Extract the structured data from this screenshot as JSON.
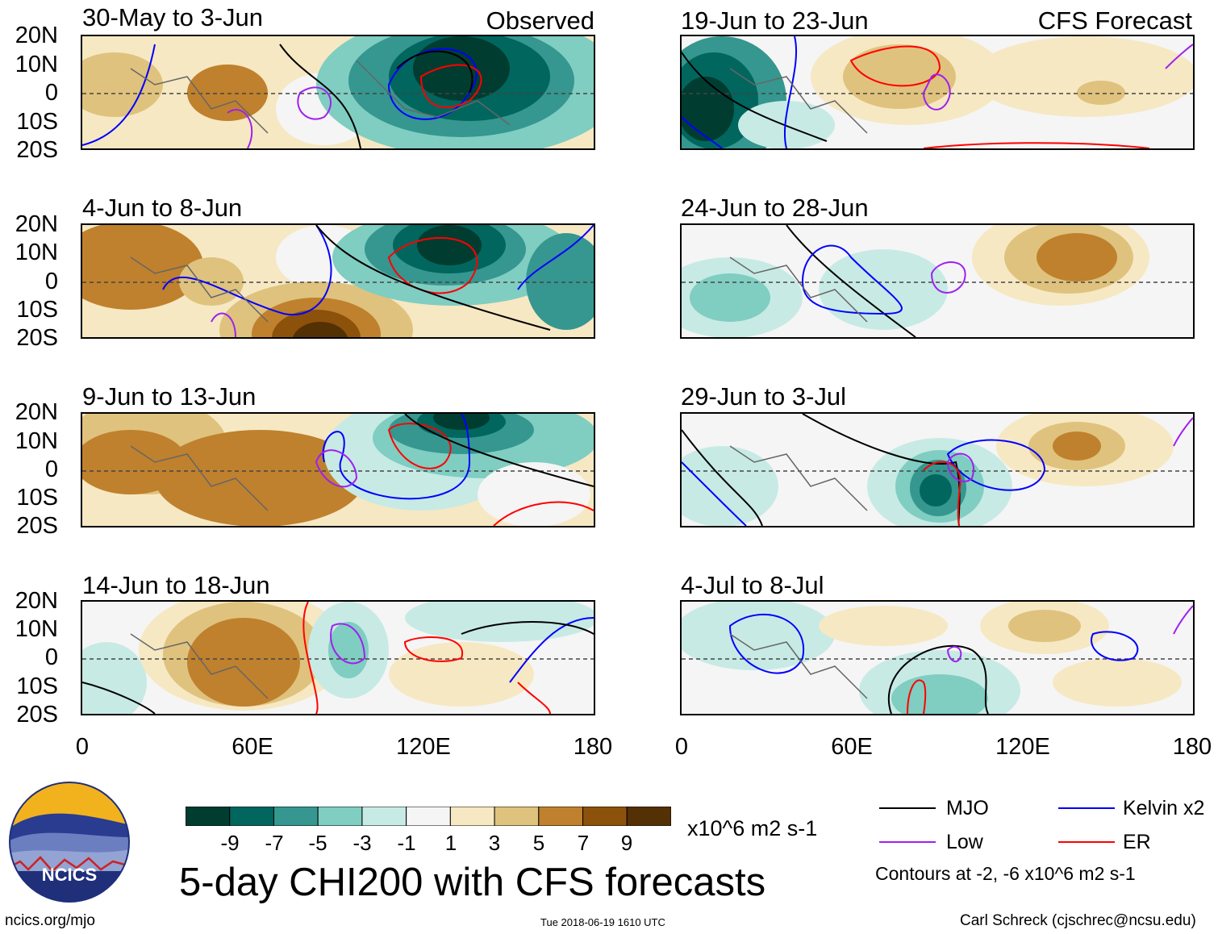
{
  "figure": {
    "main_title": "5-day CHI200 with CFS forecasts",
    "observed_label": "Observed",
    "forecast_label": "CFS Forecast",
    "units": "x10^6 m2 s-1",
    "contour_note": "Contours at -2, -6 x10^6 m2 s-1",
    "url": "ncics.org/mjo",
    "timestamp": "Tue 2018-06-19 1610 UTC",
    "author": "Carl Schreck (cjschrec@ncsu.edu)",
    "logo_text": "NCICS"
  },
  "y_ticks": [
    "20N",
    "10N",
    "0",
    "10S",
    "20S"
  ],
  "x_ticks": [
    "0",
    "60E",
    "120E",
    "180"
  ],
  "panels_left": [
    {
      "title": "30-May to 3-Jun"
    },
    {
      "title": "4-Jun to 8-Jun"
    },
    {
      "title": "9-Jun to 13-Jun"
    },
    {
      "title": "14-Jun to 18-Jun"
    }
  ],
  "panels_right": [
    {
      "title": "19-Jun to 23-Jun"
    },
    {
      "title": "24-Jun to 28-Jun"
    },
    {
      "title": "29-Jun to 3-Jul"
    },
    {
      "title": "4-Jul to 8-Jul"
    }
  ],
  "colorbar": {
    "labels": [
      "-9",
      "-7",
      "-5",
      "-3",
      "-1",
      "1",
      "3",
      "5",
      "7",
      "9"
    ],
    "colors": [
      "#003c30",
      "#01665e",
      "#35978f",
      "#80cdc1",
      "#c7eae5",
      "#f5f5f5",
      "#f6e8c3",
      "#dfc27d",
      "#bf812d",
      "#8c510a",
      "#543005"
    ]
  },
  "legend": [
    {
      "label": "MJO",
      "color": "#000000"
    },
    {
      "label": "Kelvin x2",
      "color": "#0000ff"
    },
    {
      "label": "Low",
      "color": "#a020f0"
    },
    {
      "label": "ER",
      "color": "#ff0000"
    }
  ]
}
